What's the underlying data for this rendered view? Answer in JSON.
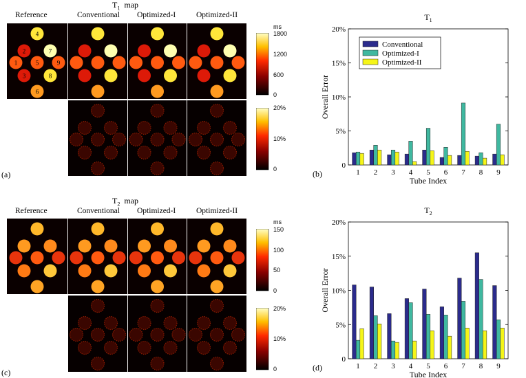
{
  "t1_section": {
    "title": "T",
    "title_sub": "1",
    "title_rest": "  map",
    "columns": [
      "Reference",
      "Conventional",
      "Optimized-I",
      "Optimized-II"
    ],
    "colorbar_map": {
      "unit": "ms",
      "ticks": [
        "1800",
        "1200",
        "600",
        "0"
      ]
    },
    "colorbar_err": {
      "ticks": [
        "20%",
        "10%",
        "0"
      ]
    },
    "panel_label": "(a)"
  },
  "t2_section": {
    "title": "T",
    "title_sub": "2",
    "title_rest": "  map",
    "columns": [
      "Reference",
      "Conventional",
      "Optimized-I",
      "Optimized-II"
    ],
    "colorbar_map": {
      "unit": "ms",
      "ticks": [
        "150",
        "100",
        "50",
        "0"
      ]
    },
    "colorbar_err": {
      "ticks": [
        "20%",
        "10%",
        "0"
      ]
    },
    "panel_label": "(c)"
  },
  "tube_labels": [
    "1",
    "2",
    "3",
    "4",
    "5",
    "6",
    "7",
    "8",
    "9"
  ],
  "colors": {
    "conventional": "#2b2b8c",
    "optimized_i": "#3fb8a0",
    "optimized_ii": "#f5f518"
  },
  "chart_data": [
    {
      "type": "bar",
      "panel_label": "(b)",
      "title": "T",
      "title_sub": "1",
      "xlabel": "Tube Index",
      "ylabel": "Overall Error",
      "categories": [
        "1",
        "2",
        "3",
        "4",
        "5",
        "6",
        "7",
        "8",
        "9"
      ],
      "ylim": [
        0,
        20
      ],
      "yticks": [
        "0",
        "5%",
        "10%",
        "15%",
        "20%"
      ],
      "legend": "top-left",
      "series": [
        {
          "name": "Conventional",
          "values": [
            1.8,
            2.2,
            1.5,
            1.6,
            2.2,
            1.1,
            1.4,
            1.3,
            1.6
          ]
        },
        {
          "name": "Optimized-I",
          "values": [
            1.9,
            2.9,
            2.2,
            3.5,
            5.4,
            2.6,
            9.1,
            1.8,
            6.0
          ]
        },
        {
          "name": "Optimized-II",
          "values": [
            1.7,
            2.2,
            1.9,
            0.5,
            2.1,
            1.4,
            2.0,
            1.0,
            1.5
          ]
        }
      ]
    },
    {
      "type": "bar",
      "panel_label": "(d)",
      "title": "T",
      "title_sub": "2",
      "xlabel": "Tube Index",
      "ylabel": "Overall Error",
      "categories": [
        "1",
        "2",
        "3",
        "4",
        "5",
        "6",
        "7",
        "8",
        "9"
      ],
      "ylim": [
        0,
        20
      ],
      "yticks": [
        "0",
        "5%",
        "10%",
        "15%",
        "20%"
      ],
      "series": [
        {
          "name": "Conventional",
          "values": [
            10.8,
            10.5,
            6.6,
            8.8,
            10.2,
            7.6,
            11.8,
            15.5,
            10.7
          ]
        },
        {
          "name": "Optimized-I",
          "values": [
            2.7,
            6.3,
            2.6,
            8.2,
            6.5,
            6.4,
            8.4,
            11.6,
            5.7
          ]
        },
        {
          "name": "Optimized-II",
          "values": [
            4.4,
            5.1,
            2.4,
            2.6,
            4.1,
            3.3,
            4.5,
            4.1,
            4.5
          ]
        }
      ]
    }
  ]
}
